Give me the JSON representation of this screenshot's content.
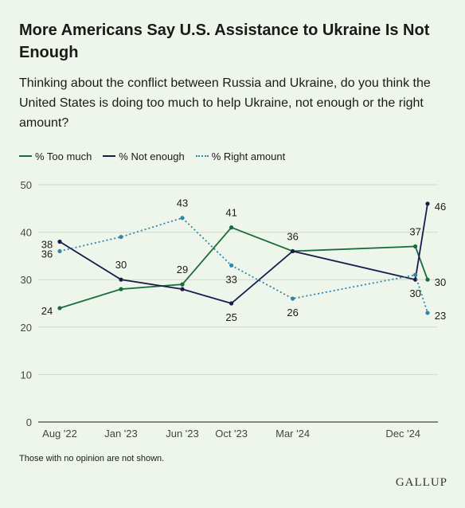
{
  "title": "More Americans Say U.S. Assistance to Ukraine Is Not Enough",
  "subtitle": "Thinking about the conflict between Russia and Ukraine, do you think the United States is doing too much to help Ukraine, not enough or the right amount?",
  "legend": {
    "too_much": "% Too much",
    "not_enough": "% Not enough",
    "right_amount": "% Right amount"
  },
  "footnote": "Those with no opinion are not shown.",
  "brand": "GALLUP",
  "chart_data": {
    "type": "line",
    "y_ticks": [
      0,
      10,
      20,
      30,
      40,
      50
    ],
    "ylim": [
      0,
      50
    ],
    "x_ticks": [
      "Aug '22",
      "Jan '23",
      "Jun '23",
      "Oct '23",
      "Mar '24",
      "Dec '24"
    ],
    "x_tick_positions": [
      0,
      5,
      10,
      14,
      19,
      28
    ],
    "x_range": [
      0,
      30
    ],
    "grid": "horizontal",
    "legend_position": "top-left",
    "series": [
      {
        "name": "% Too much",
        "color": "#1a6b3c",
        "style": "solid",
        "points": [
          [
            0,
            24
          ],
          [
            5,
            28
          ],
          [
            10,
            29
          ],
          [
            14,
            41
          ],
          [
            19,
            36
          ],
          [
            29,
            37
          ],
          [
            30,
            30
          ]
        ],
        "labels": [
          [
            0,
            "24"
          ],
          [
            10,
            "29"
          ],
          [
            14,
            "41"
          ],
          [
            29,
            "37"
          ],
          [
            30,
            "30"
          ]
        ]
      },
      {
        "name": "% Not enough",
        "color": "#1b1b4b",
        "style": "solid",
        "points": [
          [
            0,
            38
          ],
          [
            5,
            30
          ],
          [
            10,
            28
          ],
          [
            14,
            25
          ],
          [
            19,
            36
          ],
          [
            29,
            30
          ],
          [
            30,
            46
          ]
        ],
        "labels": [
          [
            0,
            "38"
          ],
          [
            5,
            "30"
          ],
          [
            14,
            "25"
          ],
          [
            19,
            "36"
          ],
          [
            29,
            "30"
          ],
          [
            30,
            "46"
          ]
        ]
      },
      {
        "name": "% Right amount",
        "color": "#2e86ab",
        "style": "dotted",
        "points": [
          [
            0,
            36
          ],
          [
            5,
            39
          ],
          [
            10,
            43
          ],
          [
            14,
            33
          ],
          [
            19,
            26
          ],
          [
            29,
            31
          ],
          [
            30,
            23
          ]
        ],
        "labels": [
          [
            0,
            "36"
          ],
          [
            10,
            "43"
          ],
          [
            14,
            "33"
          ],
          [
            19,
            "26"
          ],
          [
            30,
            "23"
          ]
        ]
      }
    ]
  }
}
